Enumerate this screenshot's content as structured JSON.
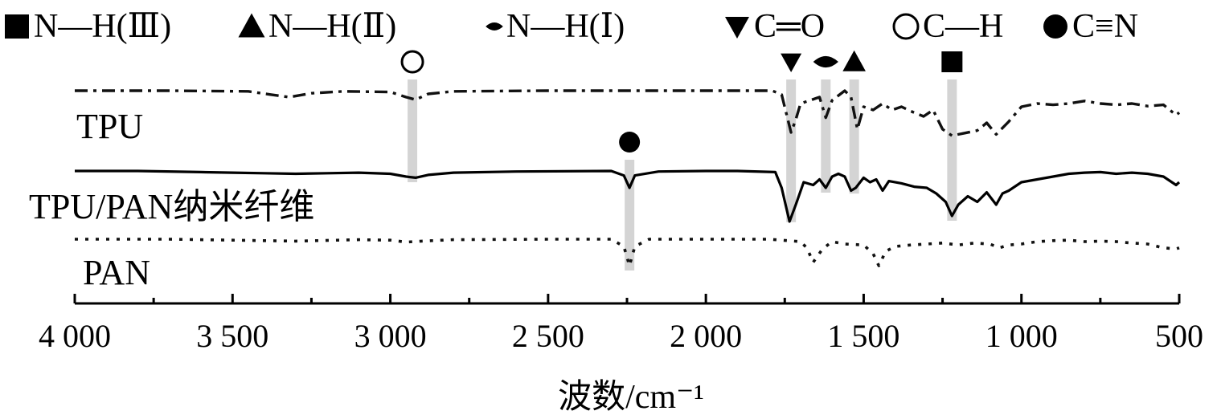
{
  "chart_data": {
    "type": "line",
    "title": "",
    "xlabel": "波数/cm⁻¹",
    "ylabel": "",
    "x_reversed": true,
    "xlim": [
      4000,
      500
    ],
    "x_ticks": [
      4000,
      3500,
      3000,
      2500,
      2000,
      1500,
      1000,
      500
    ],
    "x_tick_labels": [
      "4 000",
      "3 500",
      "3 000",
      "2 500",
      "2 000",
      "1 500",
      "1 000",
      "500"
    ],
    "grid": false,
    "legend_position": "top",
    "legend": [
      {
        "marker": "square",
        "label": "N—H(Ⅲ)"
      },
      {
        "marker": "triangle-up",
        "label": "N—H(Ⅱ)"
      },
      {
        "marker": "lens",
        "label": "N—H(Ⅰ)"
      },
      {
        "marker": "triangle-down",
        "label": "C═O"
      },
      {
        "marker": "circle-open",
        "label": "C—H"
      },
      {
        "marker": "circle-filled",
        "label": "C≡N"
      }
    ],
    "series": [
      {
        "name": "TPU",
        "line_style": "dashdot",
        "color": "#111111",
        "points": [
          [
            4000,
            0.0
          ],
          [
            3700,
            0.0
          ],
          [
            3450,
            0.01
          ],
          [
            3380,
            0.06
          ],
          [
            3320,
            0.1
          ],
          [
            3250,
            0.04
          ],
          [
            3150,
            0.01
          ],
          [
            3000,
            0.02
          ],
          [
            2950,
            0.1
          ],
          [
            2920,
            0.14
          ],
          [
            2880,
            0.05
          ],
          [
            2800,
            0.01
          ],
          [
            2500,
            0.0
          ],
          [
            2000,
            0.0
          ],
          [
            1790,
            0.0
          ],
          [
            1760,
            0.06
          ],
          [
            1730,
            0.65
          ],
          [
            1715,
            0.45
          ],
          [
            1700,
            0.2
          ],
          [
            1640,
            0.1
          ],
          [
            1620,
            0.42
          ],
          [
            1600,
            0.15
          ],
          [
            1560,
            0.0
          ],
          [
            1540,
            0.1
          ],
          [
            1520,
            0.6
          ],
          [
            1500,
            0.25
          ],
          [
            1470,
            0.3
          ],
          [
            1440,
            0.2
          ],
          [
            1410,
            0.3
          ],
          [
            1380,
            0.25
          ],
          [
            1350,
            0.32
          ],
          [
            1310,
            0.4
          ],
          [
            1280,
            0.3
          ],
          [
            1250,
            0.6
          ],
          [
            1220,
            0.7
          ],
          [
            1180,
            0.66
          ],
          [
            1140,
            0.62
          ],
          [
            1110,
            0.5
          ],
          [
            1080,
            0.68
          ],
          [
            1040,
            0.48
          ],
          [
            1000,
            0.25
          ],
          [
            950,
            0.2
          ],
          [
            900,
            0.22
          ],
          [
            850,
            0.2
          ],
          [
            800,
            0.16
          ],
          [
            750,
            0.2
          ],
          [
            700,
            0.22
          ],
          [
            650,
            0.2
          ],
          [
            600,
            0.24
          ],
          [
            550,
            0.22
          ],
          [
            510,
            0.38
          ],
          [
            500,
            0.34
          ]
        ]
      },
      {
        "name": "TPU/PAN纳米纤维",
        "line_style": "solid",
        "color": "#000000",
        "points": [
          [
            4000,
            0.0
          ],
          [
            3800,
            0.0
          ],
          [
            3600,
            0.02
          ],
          [
            3500,
            0.03
          ],
          [
            3400,
            0.04
          ],
          [
            3300,
            0.05
          ],
          [
            3200,
            0.04
          ],
          [
            3100,
            0.03
          ],
          [
            3000,
            0.05
          ],
          [
            2950,
            0.1
          ],
          [
            2920,
            0.12
          ],
          [
            2880,
            0.07
          ],
          [
            2800,
            0.03
          ],
          [
            2600,
            0.01
          ],
          [
            2300,
            0.0
          ],
          [
            2260,
            0.08
          ],
          [
            2242,
            0.3
          ],
          [
            2225,
            0.08
          ],
          [
            2150,
            0.01
          ],
          [
            2000,
            0.0
          ],
          [
            1900,
            0.0
          ],
          [
            1780,
            0.02
          ],
          [
            1760,
            0.3
          ],
          [
            1735,
            0.9
          ],
          [
            1715,
            0.6
          ],
          [
            1690,
            0.2
          ],
          [
            1660,
            0.25
          ],
          [
            1640,
            0.15
          ],
          [
            1620,
            0.3
          ],
          [
            1600,
            0.1
          ],
          [
            1580,
            0.05
          ],
          [
            1560,
            0.1
          ],
          [
            1540,
            0.35
          ],
          [
            1525,
            0.3
          ],
          [
            1500,
            0.12
          ],
          [
            1480,
            0.2
          ],
          [
            1460,
            0.15
          ],
          [
            1440,
            0.35
          ],
          [
            1420,
            0.18
          ],
          [
            1380,
            0.22
          ],
          [
            1340,
            0.28
          ],
          [
            1300,
            0.3
          ],
          [
            1270,
            0.4
          ],
          [
            1240,
            0.55
          ],
          [
            1220,
            0.8
          ],
          [
            1200,
            0.6
          ],
          [
            1170,
            0.45
          ],
          [
            1140,
            0.55
          ],
          [
            1110,
            0.38
          ],
          [
            1080,
            0.6
          ],
          [
            1060,
            0.4
          ],
          [
            1040,
            0.35
          ],
          [
            1000,
            0.2
          ],
          [
            950,
            0.15
          ],
          [
            900,
            0.1
          ],
          [
            850,
            0.05
          ],
          [
            800,
            0.03
          ],
          [
            750,
            0.02
          ],
          [
            700,
            0.05
          ],
          [
            650,
            0.03
          ],
          [
            600,
            0.05
          ],
          [
            550,
            0.1
          ],
          [
            510,
            0.25
          ],
          [
            500,
            0.2
          ]
        ]
      },
      {
        "name": "PAN",
        "line_style": "dotted",
        "color": "#111111",
        "points": [
          [
            4000,
            0.0
          ],
          [
            3700,
            0.0
          ],
          [
            3500,
            0.02
          ],
          [
            3300,
            0.04
          ],
          [
            3100,
            0.01
          ],
          [
            3000,
            0.02
          ],
          [
            2950,
            0.06
          ],
          [
            2900,
            0.04
          ],
          [
            2800,
            0.01
          ],
          [
            2500,
            0.0
          ],
          [
            2300,
            0.0
          ],
          [
            2260,
            0.15
          ],
          [
            2242,
            0.55
          ],
          [
            2225,
            0.15
          ],
          [
            2180,
            0.0
          ],
          [
            2100,
            0.0
          ],
          [
            2000,
            0.0
          ],
          [
            1800,
            0.0
          ],
          [
            1700,
            0.05
          ],
          [
            1680,
            0.18
          ],
          [
            1660,
            0.48
          ],
          [
            1630,
            0.2
          ],
          [
            1600,
            0.05
          ],
          [
            1560,
            0.1
          ],
          [
            1500,
            0.12
          ],
          [
            1470,
            0.3
          ],
          [
            1452,
            0.55
          ],
          [
            1430,
            0.25
          ],
          [
            1400,
            0.15
          ],
          [
            1350,
            0.12
          ],
          [
            1300,
            0.1
          ],
          [
            1250,
            0.08
          ],
          [
            1200,
            0.12
          ],
          [
            1150,
            0.08
          ],
          [
            1100,
            0.1
          ],
          [
            1070,
            0.18
          ],
          [
            1040,
            0.12
          ],
          [
            1000,
            0.1
          ],
          [
            950,
            0.05
          ],
          [
            900,
            0.03
          ],
          [
            850,
            0.02
          ],
          [
            800,
            0.05
          ],
          [
            750,
            0.04
          ],
          [
            700,
            0.05
          ],
          [
            650,
            0.08
          ],
          [
            600,
            0.1
          ],
          [
            550,
            0.18
          ],
          [
            510,
            0.2
          ],
          [
            500,
            0.18
          ]
        ]
      }
    ],
    "annotations": [
      {
        "marker": "circle-open",
        "x": 2930,
        "band_top_series": "TPU",
        "band_bottom_series": "TPU/PAN纳米纤维"
      },
      {
        "marker": "circle-filled",
        "x": 2242,
        "band_top_series": "TPU/PAN纳米纤维",
        "band_bottom_series": "PAN"
      },
      {
        "marker": "triangle-down",
        "x": 1730,
        "band_top_series": "TPU",
        "band_bottom_series": "TPU/PAN纳米纤维"
      },
      {
        "marker": "lens",
        "x": 1620,
        "band_top_series": "TPU",
        "band_bottom_series": "TPU/PAN纳米纤维"
      },
      {
        "marker": "triangle-up",
        "x": 1530,
        "band_top_series": "TPU",
        "band_bottom_series": "TPU/PAN纳米纤维"
      },
      {
        "marker": "square",
        "x": 1220,
        "band_top_series": "TPU",
        "band_bottom_series": "TPU/PAN纳米纤维"
      }
    ],
    "colors": {
      "ink": "#000000",
      "band": "#d4d4d4"
    }
  }
}
